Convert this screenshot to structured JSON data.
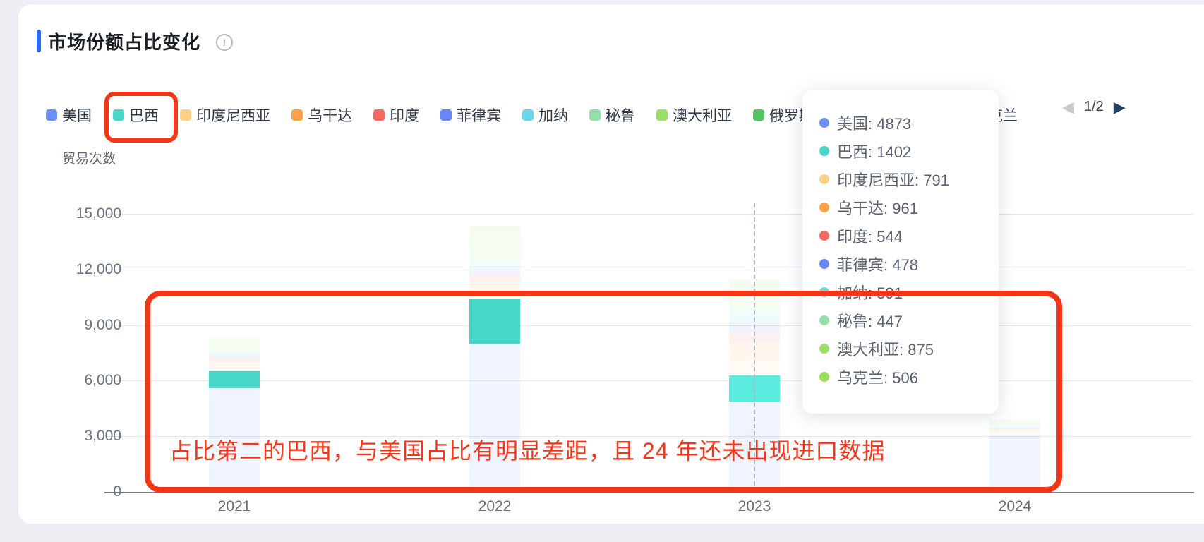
{
  "header": {
    "title": "市场份额占比变化",
    "info_icon": "info-circle-icon"
  },
  "legend": {
    "items": [
      {
        "label": "美国",
        "color": "#6d8ff8"
      },
      {
        "label": "巴西",
        "color": "#48d6c8"
      },
      {
        "label": "印度尼西亚",
        "color": "#fbd188"
      },
      {
        "label": "乌干达",
        "color": "#fba24a"
      },
      {
        "label": "印度",
        "color": "#f9695f"
      },
      {
        "label": "菲律宾",
        "color": "#6987f7"
      },
      {
        "label": "加纳",
        "color": "#6cd6ea"
      },
      {
        "label": "秘鲁",
        "color": "#95dfab"
      },
      {
        "label": "澳大利亚",
        "color": "#9cdf68"
      },
      {
        "label": "俄罗斯",
        "color": "#55c364"
      },
      {
        "label": "乌克兰",
        "color": "#9bdb5a"
      }
    ],
    "pagination": {
      "page_text": "1/2",
      "prev_icon": "◀",
      "next_icon": "▶"
    }
  },
  "axes": {
    "y_title": "贸易次数",
    "y_ticks": [
      {
        "label": "15,000",
        "value": 15000
      },
      {
        "label": "12,000",
        "value": 12000
      },
      {
        "label": "9,000",
        "value": 9000
      },
      {
        "label": "6,000",
        "value": 6000
      },
      {
        "label": "3,000",
        "value": 3000
      },
      {
        "label": "0",
        "value": 0
      }
    ],
    "x_ticks": [
      "2021",
      "2022",
      "2023",
      "2024"
    ]
  },
  "tooltip": {
    "items": [
      {
        "label": "美国",
        "value": "4873",
        "color": "#6d8ff8"
      },
      {
        "label": "巴西",
        "value": "1402",
        "color": "#48d6c8"
      },
      {
        "label": "印度尼西亚",
        "value": "791",
        "color": "#fbd188"
      },
      {
        "label": "乌干达",
        "value": "961",
        "color": "#fba24a"
      },
      {
        "label": "印度",
        "value": "544",
        "color": "#f9695f"
      },
      {
        "label": "菲律宾",
        "value": "478",
        "color": "#6987f7"
      },
      {
        "label": "加纳",
        "value": "591",
        "color": "#6cd6ea"
      },
      {
        "label": "秘鲁",
        "value": "447",
        "color": "#95dfab"
      },
      {
        "label": "澳大利亚",
        "value": "875",
        "color": "#9cdf68"
      },
      {
        "label": "乌克兰",
        "value": "506",
        "color": "#9bdb5a"
      }
    ]
  },
  "annotations": {
    "callout_text": "占比第二的巴西，与美国占比有明显差距，且 24 年还未出现进口数据",
    "color": "#f53616",
    "highlighted_legend_item": "巴西"
  },
  "chart_data": {
    "type": "bar",
    "stacked": true,
    "title": "市场份额占比变化",
    "ylabel": "贸易次数",
    "ylim": [
      0,
      15000
    ],
    "grid": true,
    "legend_position": "top",
    "categories": [
      "2021",
      "2022",
      "2023",
      "2024"
    ],
    "highlighted_series": "巴西",
    "hover_category": "2023",
    "series": [
      {
        "name": "美国",
        "color": "#6d8ff8",
        "values": [
          5600,
          8000,
          4873,
          3070
        ]
      },
      {
        "name": "巴西",
        "color": "#48d6c8",
        "emphasis_color": "#5beade",
        "values": [
          900,
          2380,
          1402,
          0
        ]
      },
      {
        "name": "印度尼西亚",
        "color": "#fbd188",
        "values": [
          300,
          500,
          791,
          150
        ]
      },
      {
        "name": "乌干达",
        "color": "#fba24a",
        "values": [
          250,
          400,
          961,
          100
        ]
      },
      {
        "name": "印度",
        "color": "#f9695f",
        "values": [
          200,
          450,
          544,
          80
        ]
      },
      {
        "name": "菲律宾",
        "color": "#6987f7",
        "values": [
          150,
          300,
          478,
          70
        ]
      },
      {
        "name": "加纳",
        "color": "#6cd6ea",
        "values": [
          150,
          280,
          591,
          80
        ]
      },
      {
        "name": "秘鲁",
        "color": "#95dfab",
        "values": [
          120,
          350,
          447,
          60
        ]
      },
      {
        "name": "澳大利亚",
        "color": "#9cdf68",
        "values": [
          400,
          1200,
          875,
          180
        ]
      },
      {
        "name": "俄罗斯",
        "color": "#55c364",
        "values": [
          0,
          0,
          0,
          0
        ]
      },
      {
        "name": "乌克兰",
        "color": "#9bdb5a",
        "values": [
          230,
          500,
          506,
          110
        ]
      }
    ]
  }
}
